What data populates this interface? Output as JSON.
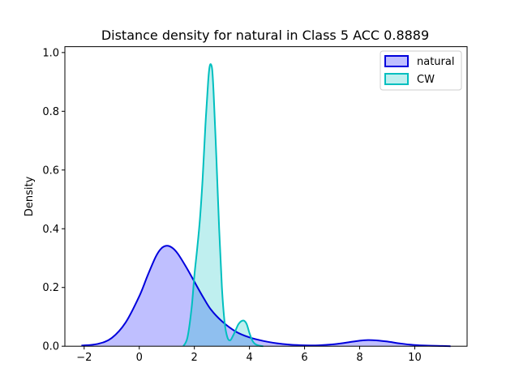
{
  "chart_data": {
    "type": "area",
    "title": "Distance density for natural in Class 5 ACC 0.8889",
    "xlabel": "",
    "ylabel": "Density",
    "xlim": [
      -2.7,
      11.9
    ],
    "ylim": [
      0,
      1.02
    ],
    "xticks": [
      -2,
      0,
      2,
      4,
      6,
      8,
      10
    ],
    "xtick_labels": [
      "−2",
      "0",
      "2",
      "4",
      "6",
      "8",
      "10"
    ],
    "yticks": [
      0.0,
      0.2,
      0.4,
      0.6,
      0.8,
      1.0
    ],
    "ytick_labels": [
      "0.0",
      "0.2",
      "0.4",
      "0.6",
      "0.8",
      "1.0"
    ],
    "grid": false,
    "legend_position": "top-right",
    "series": [
      {
        "name": "natural",
        "line_color": "#0000dd",
        "fill_color": "#0000ff",
        "fill_opacity": 0.25,
        "x": [
          -2.1,
          -1.5,
          -1.0,
          -0.5,
          0.0,
          0.3,
          0.6,
          0.8,
          1.0,
          1.2,
          1.4,
          1.7,
          2.0,
          2.3,
          2.6,
          3.0,
          3.5,
          4.0,
          4.5,
          5.0,
          5.5,
          6.0,
          6.5,
          7.0,
          7.5,
          8.0,
          8.3,
          8.6,
          9.0,
          9.5,
          10.0,
          10.5,
          11.0,
          11.3
        ],
        "y": [
          0.002,
          0.008,
          0.028,
          0.08,
          0.17,
          0.24,
          0.305,
          0.333,
          0.342,
          0.335,
          0.315,
          0.27,
          0.22,
          0.17,
          0.125,
          0.085,
          0.05,
          0.03,
          0.018,
          0.01,
          0.005,
          0.003,
          0.003,
          0.006,
          0.012,
          0.019,
          0.021,
          0.02,
          0.016,
          0.009,
          0.004,
          0.002,
          0.001,
          0.0
        ]
      },
      {
        "name": "CW",
        "line_color": "#00bfbf",
        "fill_color": "#00bfbf",
        "fill_opacity": 0.25,
        "x": [
          1.6,
          1.75,
          1.9,
          2.0,
          2.1,
          2.2,
          2.3,
          2.4,
          2.5,
          2.55,
          2.6,
          2.65,
          2.7,
          2.8,
          2.9,
          3.0,
          3.1,
          3.2,
          3.3,
          3.4,
          3.5,
          3.6,
          3.7,
          3.8,
          3.9,
          4.0,
          4.1,
          4.2,
          4.35,
          4.5
        ],
        "y": [
          0.0,
          0.03,
          0.13,
          0.24,
          0.33,
          0.43,
          0.57,
          0.75,
          0.9,
          0.95,
          0.96,
          0.94,
          0.86,
          0.64,
          0.4,
          0.2,
          0.08,
          0.03,
          0.02,
          0.035,
          0.055,
          0.075,
          0.085,
          0.087,
          0.075,
          0.045,
          0.02,
          0.008,
          0.002,
          0.0
        ]
      }
    ]
  }
}
